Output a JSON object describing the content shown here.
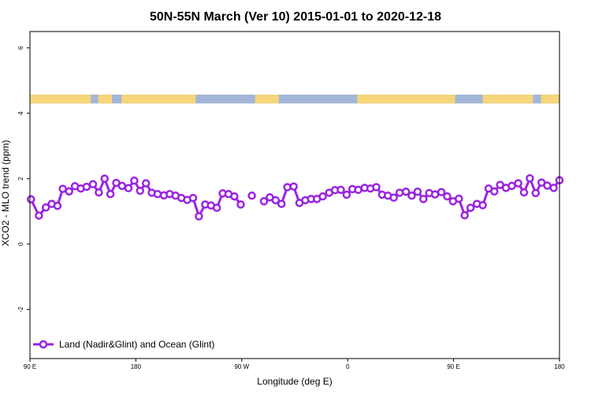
{
  "chart_data": {
    "type": "line",
    "title": "50N-55N March (Ver 10)   2015-01-01 to 2020-12-18",
    "xlabel": "Longitude (deg E)",
    "ylabel": "XCO2 - MLO trend (ppm)",
    "xlim": [
      0,
      100
    ],
    "ylim": [
      -3.5,
      6.5
    ],
    "x_ticks": [
      {
        "x": 0,
        "label": "90 E"
      },
      {
        "x": 20,
        "label": "180"
      },
      {
        "x": 40,
        "label": "90 W"
      },
      {
        "x": 60,
        "label": "0"
      },
      {
        "x": 80,
        "label": "90 E"
      },
      {
        "x": 100,
        "label": "180"
      }
    ],
    "y_ticks": [
      {
        "y": -2,
        "label": "-2"
      },
      {
        "y": 0,
        "label": "0"
      },
      {
        "y": 2,
        "label": "2"
      },
      {
        "y": 4,
        "label": "4"
      },
      {
        "y": 6,
        "label": "6"
      }
    ],
    "land_ocean_band": {
      "y_range": [
        4.3,
        4.57
      ],
      "land_color": "#f7d57a",
      "ocean_color": "#a2b6d8",
      "land_spans_x": [
        [
          0,
          11.5
        ],
        [
          12.9,
          15.5
        ],
        [
          17.3,
          31.3
        ],
        [
          42.5,
          47.0
        ],
        [
          61.8,
          80.3
        ],
        [
          85.5,
          95.0
        ],
        [
          96.5,
          100
        ]
      ]
    },
    "series": [
      {
        "name": "Land (Nadir&Glint) and Ocean (Glint)",
        "color": "#9a24e0",
        "points": [
          [
            0.2,
            1.37
          ],
          [
            1.7,
            0.87
          ],
          [
            3.0,
            1.12
          ],
          [
            4.1,
            1.23
          ],
          [
            5.2,
            1.17
          ],
          [
            6.2,
            1.69
          ],
          [
            7.4,
            1.61
          ],
          [
            8.5,
            1.77
          ],
          [
            9.6,
            1.7
          ],
          [
            10.7,
            1.75
          ],
          [
            11.9,
            1.83
          ],
          [
            13.0,
            1.58
          ],
          [
            14.1,
            2.0
          ],
          [
            15.2,
            1.53
          ],
          [
            16.3,
            1.87
          ],
          [
            17.4,
            1.78
          ],
          [
            18.6,
            1.71
          ],
          [
            19.7,
            1.94
          ],
          [
            20.8,
            1.63
          ],
          [
            21.9,
            1.86
          ],
          [
            23.0,
            1.57
          ],
          [
            24.1,
            1.53
          ],
          [
            25.3,
            1.49
          ],
          [
            26.4,
            1.53
          ],
          [
            27.5,
            1.48
          ],
          [
            28.6,
            1.41
          ],
          [
            29.7,
            1.35
          ],
          [
            30.8,
            1.41
          ],
          [
            31.9,
            0.85
          ],
          [
            33.1,
            1.21
          ],
          [
            34.2,
            1.18
          ],
          [
            35.3,
            1.11
          ],
          [
            36.4,
            1.55
          ],
          [
            37.5,
            1.53
          ],
          [
            38.6,
            1.46
          ],
          [
            39.8,
            1.21
          ],
          null,
          [
            41.9,
            1.48
          ],
          null,
          [
            44.2,
            1.31
          ],
          [
            45.3,
            1.43
          ],
          [
            46.4,
            1.34
          ],
          [
            47.5,
            1.23
          ],
          [
            48.6,
            1.74
          ],
          [
            49.8,
            1.76
          ],
          [
            50.9,
            1.26
          ],
          [
            52.0,
            1.34
          ],
          [
            53.1,
            1.38
          ],
          [
            54.2,
            1.38
          ],
          [
            55.3,
            1.46
          ],
          [
            56.5,
            1.57
          ],
          [
            57.6,
            1.65
          ],
          [
            58.7,
            1.66
          ],
          [
            59.8,
            1.51
          ],
          [
            60.9,
            1.68
          ],
          [
            62.0,
            1.66
          ],
          [
            63.2,
            1.72
          ],
          [
            64.3,
            1.7
          ],
          [
            65.4,
            1.74
          ],
          [
            66.5,
            1.51
          ],
          [
            67.6,
            1.48
          ],
          [
            68.7,
            1.42
          ],
          [
            69.8,
            1.57
          ],
          [
            71.0,
            1.6
          ],
          [
            72.1,
            1.48
          ],
          [
            73.2,
            1.6
          ],
          [
            74.3,
            1.38
          ],
          [
            75.4,
            1.56
          ],
          [
            76.5,
            1.52
          ],
          [
            77.7,
            1.59
          ],
          [
            78.8,
            1.46
          ],
          [
            79.9,
            1.31
          ],
          [
            81.0,
            1.39
          ],
          [
            82.1,
            0.88
          ],
          [
            83.2,
            1.11
          ],
          [
            84.4,
            1.23
          ],
          [
            85.5,
            1.19
          ],
          [
            86.6,
            1.7
          ],
          [
            87.7,
            1.61
          ],
          [
            88.8,
            1.81
          ],
          [
            89.9,
            1.72
          ],
          [
            91.0,
            1.78
          ],
          [
            92.2,
            1.86
          ],
          [
            93.3,
            1.58
          ],
          [
            94.4,
            2.01
          ],
          [
            95.5,
            1.56
          ],
          [
            96.6,
            1.88
          ],
          [
            97.7,
            1.79
          ],
          [
            98.9,
            1.72
          ],
          [
            100.0,
            1.95
          ]
        ]
      }
    ],
    "legend": {
      "placement": "bottom-left"
    }
  }
}
